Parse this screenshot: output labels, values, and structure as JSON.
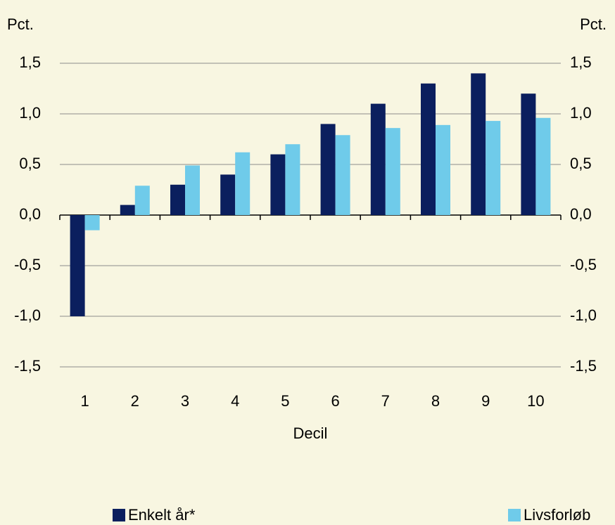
{
  "chart_data": {
    "type": "bar",
    "y_label": "Pct.",
    "y2_label": "Pct.",
    "x_label": "Decil",
    "categories": [
      "1",
      "2",
      "3",
      "4",
      "5",
      "6",
      "7",
      "8",
      "9",
      "10"
    ],
    "series": [
      {
        "name": "Enkelt år*",
        "color": "#0b1f5e",
        "values": [
          -1.0,
          0.1,
          0.3,
          0.4,
          0.6,
          0.9,
          1.1,
          1.3,
          1.4,
          1.2
        ]
      },
      {
        "name": "Livsforløb",
        "color": "#6fcbea",
        "values": [
          -0.15,
          0.29,
          0.49,
          0.62,
          0.7,
          0.79,
          0.86,
          0.89,
          0.93,
          0.96
        ]
      }
    ],
    "ylim": [
      -1.5,
      1.5
    ],
    "yticks": [
      {
        "value": -1.5,
        "label": "-1,5"
      },
      {
        "value": -1.0,
        "label": "-1,0"
      },
      {
        "value": -0.5,
        "label": "-0,5"
      },
      {
        "value": 0,
        "label": "0,0"
      },
      {
        "value": 0.5,
        "label": "0,5"
      },
      {
        "value": 1.0,
        "label": "1,0"
      },
      {
        "value": 1.5,
        "label": "1,5"
      }
    ],
    "y2lim": [
      -1.5,
      1.5
    ],
    "y2ticks": [
      {
        "value": -1.5,
        "label": "-1,5"
      },
      {
        "value": -1.0,
        "label": "-1,0"
      },
      {
        "value": -0.5,
        "label": "-0,5"
      },
      {
        "value": 0,
        "label": "0,0"
      },
      {
        "value": 0.5,
        "label": "0,5"
      },
      {
        "value": 1.0,
        "label": "1,0"
      },
      {
        "value": 1.5,
        "label": "1,5"
      }
    ],
    "grid": true
  }
}
